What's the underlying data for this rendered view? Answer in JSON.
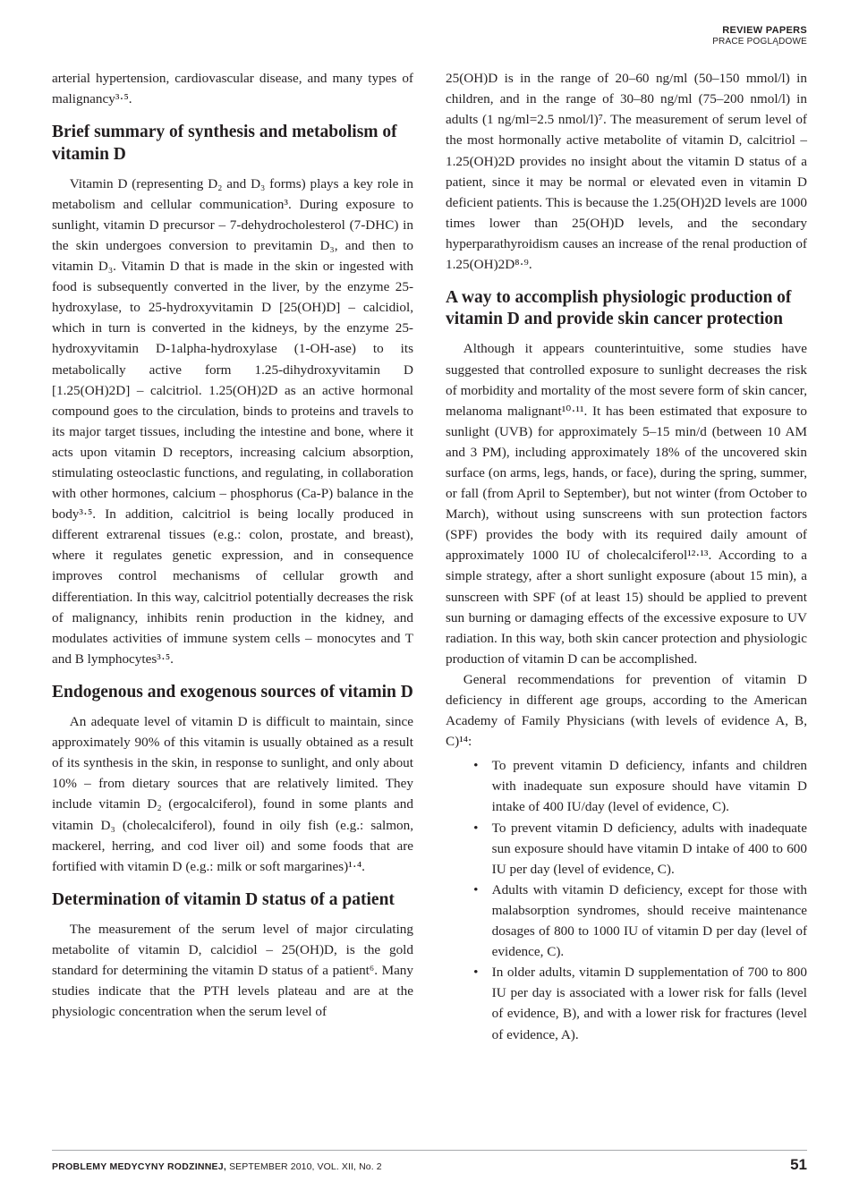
{
  "running_head": {
    "line1": "REVIEW PAPERS",
    "line2": "PRACE POGLĄDOWE"
  },
  "left": {
    "p1": "arterial hypertension, cardiovascular disease, and many types of malignancy³·⁵.",
    "h1": "Brief summary of synthesis and metabolism of vitamin D",
    "p2": "Vitamin D (representing D₂ and D₃ forms) plays a key role in metabolism and cellular communication³. During exposure to sunlight, vitamin D precursor – 7-dehydrocholesterol (7-DHC) in the skin undergoes conversion to previtamin D₃, and then to vitamin D₃. Vitamin D that is made in the skin or ingested with food is subsequently converted in the liver, by the enzyme 25-hydroxylase, to 25-hydroxyvitamin D [25(OH)D] – calcidiol, which in turn is converted in the kidneys, by the enzyme 25-hydroxyvitamin D-1alpha-hydroxylase (1-OH-ase) to its metabolically active form 1.25-dihydroxyvitamin D [1.25(OH)2D] – calcitriol. 1.25(OH)2D as an active hormonal compound goes to the circulation, binds to proteins and travels to its major target tissues, including the intestine and bone, where it acts upon vitamin D receptors, increasing calcium absorption, stimulating osteoclastic functions, and regulating, in collaboration with other hormones, calcium – phosphorus (Ca-P) balance in the body³·⁵. In addition, calcitriol is being locally produced in different extrarenal tissues (e.g.: colon, prostate, and breast), where it regulates genetic expression, and in consequence improves control mechanisms of cellular growth and differentiation. In this way, calcitriol potentially decreases the risk of malignancy, inhibits renin production in the kidney, and modulates activities of immune system cells – monocytes and T and B lymphocytes³·⁵.",
    "h2": "Endogenous and exogenous sources of vitamin D",
    "p3": "An adequate level of vitamin D is difficult to maintain, since approximately 90% of this vitamin is usually obtained as a result of its synthesis in the skin, in response to sunlight, and only about 10% – from dietary sources that are relatively limited. They include vitamin D₂ (ergocalciferol), found in some plants and vitamin D₃ (cholecalciferol), found in oily fish (e.g.: salmon, mackerel, herring, and cod liver oil) and some foods that are fortified with vitamin D (e.g.: milk or soft margarines)¹·⁴.",
    "h3": "Determination of vitamin D status of a patient",
    "p4": "The measurement of the serum level of major circulating metabolite of vitamin D, calcidiol – 25(OH)D, is the gold standard for determining the vitamin D status of a patient⁶. Many studies indicate that the PTH levels plateau and are at the physiologic concentration when the serum level of"
  },
  "right": {
    "p1": "25(OH)D is in the range of 20–60 ng/ml (50–150 mmol/l) in children, and in the range of 30–80 ng/ml (75–200 nmol/l) in adults (1 ng/ml=2.5 nmol/l)⁷. The measurement of serum level of the most hormonally active metabolite of vitamin D, calcitriol – 1.25(OH)2D provides no insight about the vitamin D status of a patient, since it may be normal or elevated even in vitamin D deficient patients. This is because the 1.25(OH)2D levels are 1000 times lower than 25(OH)D levels, and the secondary hyperparathyroidism causes an increase of the renal production of 1.25(OH)2D⁸·⁹.",
    "h1": "A way to accomplish physiologic production of vitamin D and provide skin cancer protection",
    "p2": "Although it appears counterintuitive, some studies have suggested that controlled exposure to sunlight decreases the risk of morbidity and mortality of the most severe form of skin cancer, melanoma malignant¹⁰·¹¹. It has been estimated that exposure to sunlight (UVB) for approximately 5–15 min/d (between 10 AM and 3 PM), including approximately 18% of the uncovered skin surface (on arms, legs, hands, or face), during the spring, summer, or fall (from April to September), but not winter (from October to March), without using sunscreens with sun protection factors (SPF) provides the body with its required daily amount of approximately 1000 IU of cholecalciferol¹²·¹³. According to a simple strategy, after a short sunlight exposure (about 15 min), a sunscreen with SPF (of at least 15) should be applied to prevent sun burning or damaging effects of the excessive exposure to UV radiation. In this way, both skin cancer protection and physiologic production of vitamin D can be accomplished.",
    "p3": "General recommendations for prevention of vitamin D deficiency in different age groups, according to the American Academy of Family Physicians (with levels of evidence A, B, C)¹⁴:",
    "bullets": [
      "To prevent vitamin D deficiency, infants and children with inadequate sun exposure should have vitamin D intake of 400 IU/day (level of evidence, C).",
      "To prevent vitamin D deficiency, adults with inadequate sun exposure should have vitamin D intake of 400 to 600 IU per day (level of evidence, C).",
      "Adults with vitamin D deficiency, except for those with malabsorption syndromes, should receive maintenance dosages of 800 to 1000 IU of vitamin D per day (level of evidence, C).",
      "In older adults, vitamin D supplementation of 700 to 800 IU per day is associated with a lower risk for falls (level of evidence, B), and with a lower risk for fractures (level of evidence, A)."
    ]
  },
  "footer": {
    "journal_bold": "PROBLEMY MEDYCYNY RODZINNEJ,",
    "journal_rest": " SEPTEMBER 2010, VOL. XII, No. 2",
    "page": "51"
  }
}
